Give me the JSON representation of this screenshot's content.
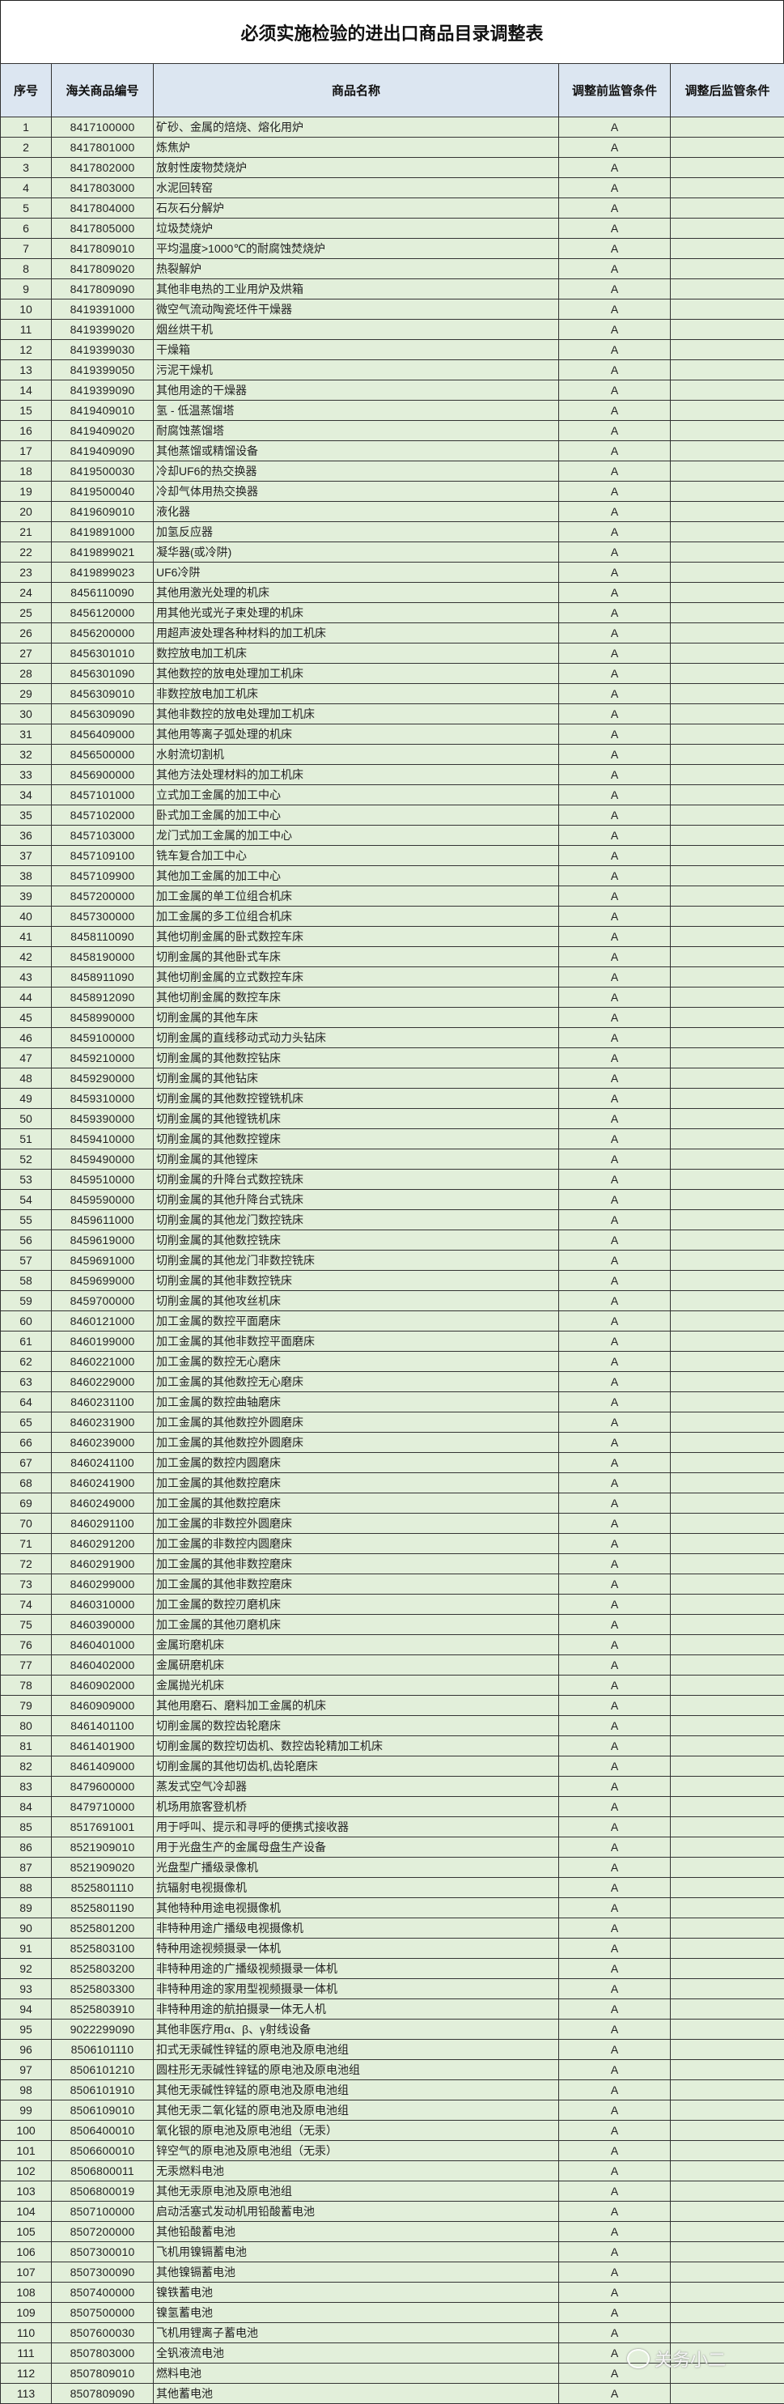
{
  "title": "必须实施检验的进出口商品目录调整表",
  "columns": [
    "序号",
    "海关商品编号",
    "商品名称",
    "调整前监管条件",
    "调整后监管条件"
  ],
  "colors": {
    "header_bg": "#dce6f1",
    "row_bg": "#e2efda"
  },
  "watermark": "关务小二",
  "rows": [
    [
      "1",
      "8417100000",
      "矿砂、金属的焙烧、熔化用炉",
      "A",
      ""
    ],
    [
      "2",
      "8417801000",
      "炼焦炉",
      "A",
      ""
    ],
    [
      "3",
      "8417802000",
      "放射性废物焚烧炉",
      "A",
      ""
    ],
    [
      "4",
      "8417803000",
      "水泥回转窑",
      "A",
      ""
    ],
    [
      "5",
      "8417804000",
      "石灰石分解炉",
      "A",
      ""
    ],
    [
      "6",
      "8417805000",
      "垃圾焚烧炉",
      "A",
      ""
    ],
    [
      "7",
      "8417809010",
      "平均温度>1000℃的耐腐蚀焚烧炉",
      "A",
      ""
    ],
    [
      "8",
      "8417809020",
      "热裂解炉",
      "A",
      ""
    ],
    [
      "9",
      "8417809090",
      "其他非电热的工业用炉及烘箱",
      "A",
      ""
    ],
    [
      "10",
      "8419391000",
      "微空气流动陶瓷坯件干燥器",
      "A",
      ""
    ],
    [
      "11",
      "8419399020",
      "烟丝烘干机",
      "A",
      ""
    ],
    [
      "12",
      "8419399030",
      "干燥箱",
      "A",
      ""
    ],
    [
      "13",
      "8419399050",
      "污泥干燥机",
      "A",
      ""
    ],
    [
      "14",
      "8419399090",
      "其他用途的干燥器",
      "A",
      ""
    ],
    [
      "15",
      "8419409010",
      "氢 - 低温蒸馏塔",
      "A",
      ""
    ],
    [
      "16",
      "8419409020",
      "耐腐蚀蒸馏塔",
      "A",
      ""
    ],
    [
      "17",
      "8419409090",
      "其他蒸馏或精馏设备",
      "A",
      ""
    ],
    [
      "18",
      "8419500030",
      "冷却UF6的热交换器",
      "A",
      ""
    ],
    [
      "19",
      "8419500040",
      "冷却气体用热交换器",
      "A",
      ""
    ],
    [
      "20",
      "8419609010",
      "液化器",
      "A",
      ""
    ],
    [
      "21",
      "8419891000",
      "加氢反应器",
      "A",
      ""
    ],
    [
      "22",
      "8419899021",
      "凝华器(或冷阱)",
      "A",
      ""
    ],
    [
      "23",
      "8419899023",
      "UF6冷阱",
      "A",
      ""
    ],
    [
      "24",
      "8456110090",
      "其他用激光处理的机床",
      "A",
      ""
    ],
    [
      "25",
      "8456120000",
      "用其他光或光子束处理的机床",
      "A",
      ""
    ],
    [
      "26",
      "8456200000",
      "用超声波处理各种材料的加工机床",
      "A",
      ""
    ],
    [
      "27",
      "8456301010",
      "数控放电加工机床",
      "A",
      ""
    ],
    [
      "28",
      "8456301090",
      "其他数控的放电处理加工机床",
      "A",
      ""
    ],
    [
      "29",
      "8456309010",
      "非数控放电加工机床",
      "A",
      ""
    ],
    [
      "30",
      "8456309090",
      "其他非数控的放电处理加工机床",
      "A",
      ""
    ],
    [
      "31",
      "8456409000",
      "其他用等离子弧处理的机床",
      "A",
      ""
    ],
    [
      "32",
      "8456500000",
      "水射流切割机",
      "A",
      ""
    ],
    [
      "33",
      "8456900000",
      "其他方法处理材料的加工机床",
      "A",
      ""
    ],
    [
      "34",
      "8457101000",
      "立式加工金属的加工中心",
      "A",
      ""
    ],
    [
      "35",
      "8457102000",
      "卧式加工金属的加工中心",
      "A",
      ""
    ],
    [
      "36",
      "8457103000",
      "龙门式加工金属的加工中心",
      "A",
      ""
    ],
    [
      "37",
      "8457109100",
      "铣车复合加工中心",
      "A",
      ""
    ],
    [
      "38",
      "8457109900",
      "其他加工金属的加工中心",
      "A",
      ""
    ],
    [
      "39",
      "8457200000",
      "加工金属的单工位组合机床",
      "A",
      ""
    ],
    [
      "40",
      "8457300000",
      "加工金属的多工位组合机床",
      "A",
      ""
    ],
    [
      "41",
      "8458110090",
      "其他切削金属的卧式数控车床",
      "A",
      ""
    ],
    [
      "42",
      "8458190000",
      "切削金属的其他卧式车床",
      "A",
      ""
    ],
    [
      "43",
      "8458911090",
      "其他切削金属的立式数控车床",
      "A",
      ""
    ],
    [
      "44",
      "8458912090",
      "其他切削金属的数控车床",
      "A",
      ""
    ],
    [
      "45",
      "8458990000",
      "切削金属的其他车床",
      "A",
      ""
    ],
    [
      "46",
      "8459100000",
      "切削金属的直线移动式动力头钻床",
      "A",
      ""
    ],
    [
      "47",
      "8459210000",
      "切削金属的其他数控钻床",
      "A",
      ""
    ],
    [
      "48",
      "8459290000",
      "切削金属的其他钻床",
      "A",
      ""
    ],
    [
      "49",
      "8459310000",
      "切削金属的其他数控镗铣机床",
      "A",
      ""
    ],
    [
      "50",
      "8459390000",
      "切削金属的其他镗铣机床",
      "A",
      ""
    ],
    [
      "51",
      "8459410000",
      "切削金属的其他数控镗床",
      "A",
      ""
    ],
    [
      "52",
      "8459490000",
      "切削金属的其他镗床",
      "A",
      ""
    ],
    [
      "53",
      "8459510000",
      "切削金属的升降台式数控铣床",
      "A",
      ""
    ],
    [
      "54",
      "8459590000",
      "切削金属的其他升降台式铣床",
      "A",
      ""
    ],
    [
      "55",
      "8459611000",
      "切削金属的其他龙门数控铣床",
      "A",
      ""
    ],
    [
      "56",
      "8459619000",
      "切削金属的其他数控铣床",
      "A",
      ""
    ],
    [
      "57",
      "8459691000",
      "切削金属的其他龙门非数控铣床",
      "A",
      ""
    ],
    [
      "58",
      "8459699000",
      "切削金属的其他非数控铣床",
      "A",
      ""
    ],
    [
      "59",
      "8459700000",
      "切削金属的其他攻丝机床",
      "A",
      ""
    ],
    [
      "60",
      "8460121000",
      "加工金属的数控平面磨床",
      "A",
      ""
    ],
    [
      "61",
      "8460199000",
      "加工金属的其他非数控平面磨床",
      "A",
      ""
    ],
    [
      "62",
      "8460221000",
      "加工金属的数控无心磨床",
      "A",
      ""
    ],
    [
      "63",
      "8460229000",
      "加工金属的其他数控无心磨床",
      "A",
      ""
    ],
    [
      "64",
      "8460231100",
      "加工金属的数控曲轴磨床",
      "A",
      ""
    ],
    [
      "65",
      "8460231900",
      "加工金属的其他数控外圆磨床",
      "A",
      ""
    ],
    [
      "66",
      "8460239000",
      "加工金属的其他数控外圆磨床",
      "A",
      ""
    ],
    [
      "67",
      "8460241100",
      "加工金属的数控内圆磨床",
      "A",
      ""
    ],
    [
      "68",
      "8460241900",
      "加工金属的其他数控磨床",
      "A",
      ""
    ],
    [
      "69",
      "8460249000",
      "加工金属的其他数控磨床",
      "A",
      ""
    ],
    [
      "70",
      "8460291100",
      "加工金属的非数控外圆磨床",
      "A",
      ""
    ],
    [
      "71",
      "8460291200",
      "加工金属的非数控内圆磨床",
      "A",
      ""
    ],
    [
      "72",
      "8460291900",
      "加工金属的其他非数控磨床",
      "A",
      ""
    ],
    [
      "73",
      "8460299000",
      "加工金属的其他非数控磨床",
      "A",
      ""
    ],
    [
      "74",
      "8460310000",
      "加工金属的数控刃磨机床",
      "A",
      ""
    ],
    [
      "75",
      "8460390000",
      "加工金属的其他刃磨机床",
      "A",
      ""
    ],
    [
      "76",
      "8460401000",
      "金属珩磨机床",
      "A",
      ""
    ],
    [
      "77",
      "8460402000",
      "金属研磨机床",
      "A",
      ""
    ],
    [
      "78",
      "8460902000",
      "金属抛光机床",
      "A",
      ""
    ],
    [
      "79",
      "8460909000",
      "其他用磨石、磨料加工金属的机床",
      "A",
      ""
    ],
    [
      "80",
      "8461401100",
      "切削金属的数控齿轮磨床",
      "A",
      ""
    ],
    [
      "81",
      "8461401900",
      "切削金属的数控切齿机、数控齿轮精加工机床",
      "A",
      ""
    ],
    [
      "82",
      "8461409000",
      "切削金属的其他切齿机,齿轮磨床",
      "A",
      ""
    ],
    [
      "83",
      "8479600000",
      "蒸发式空气冷却器",
      "A",
      ""
    ],
    [
      "84",
      "8479710000",
      "机场用旅客登机桥",
      "A",
      ""
    ],
    [
      "85",
      "8517691001",
      "用于呼叫、提示和寻呼的便携式接收器",
      "A",
      ""
    ],
    [
      "86",
      "8521909010",
      "用于光盘生产的金属母盘生产设备",
      "A",
      ""
    ],
    [
      "87",
      "8521909020",
      "光盘型广播级录像机",
      "A",
      ""
    ],
    [
      "88",
      "8525801110",
      "抗辐射电视摄像机",
      "A",
      ""
    ],
    [
      "89",
      "8525801190",
      "其他特种用途电视摄像机",
      "A",
      ""
    ],
    [
      "90",
      "8525801200",
      "非特种用途广播级电视摄像机",
      "A",
      ""
    ],
    [
      "91",
      "8525803100",
      "特种用途视频摄录一体机",
      "A",
      ""
    ],
    [
      "92",
      "8525803200",
      "非特种用途的广播级视频摄录一体机",
      "A",
      ""
    ],
    [
      "93",
      "8525803300",
      "非特种用途的家用型视频摄录一体机",
      "A",
      ""
    ],
    [
      "94",
      "8525803910",
      "非特种用途的航拍摄录一体无人机",
      "A",
      ""
    ],
    [
      "95",
      "9022299090",
      "其他非医疗用α、β、γ射线设备",
      "A",
      ""
    ],
    [
      "96",
      "8506101110",
      "扣式无汞碱性锌锰的原电池及原电池组",
      "A",
      ""
    ],
    [
      "97",
      "8506101210",
      "圆柱形无汞碱性锌锰的原电池及原电池组",
      "A",
      ""
    ],
    [
      "98",
      "8506101910",
      "其他无汞碱性锌锰的原电池及原电池组",
      "A",
      ""
    ],
    [
      "99",
      "8506109010",
      "其他无汞二氧化锰的原电池及原电池组",
      "A",
      ""
    ],
    [
      "100",
      "8506400010",
      "氧化银的原电池及原电池组（无汞）",
      "A",
      ""
    ],
    [
      "101",
      "8506600010",
      "锌空气的原电池及原电池组（无汞）",
      "A",
      ""
    ],
    [
      "102",
      "8506800011",
      "无汞燃料电池",
      "A",
      ""
    ],
    [
      "103",
      "8506800019",
      "其他无汞原电池及原电池组",
      "A",
      ""
    ],
    [
      "104",
      "8507100000",
      "启动活塞式发动机用铅酸蓄电池",
      "A",
      ""
    ],
    [
      "105",
      "8507200000",
      "其他铅酸蓄电池",
      "A",
      ""
    ],
    [
      "106",
      "8507300010",
      "飞机用镍镉蓄电池",
      "A",
      ""
    ],
    [
      "107",
      "8507300090",
      "其他镍镉蓄电池",
      "A",
      ""
    ],
    [
      "108",
      "8507400000",
      "镍铁蓄电池",
      "A",
      ""
    ],
    [
      "109",
      "8507500000",
      "镍氢蓄电池",
      "A",
      ""
    ],
    [
      "110",
      "8507600030",
      "飞机用锂离子蓄电池",
      "A",
      ""
    ],
    [
      "111",
      "8507803000",
      "全钒液流电池",
      "A",
      ""
    ],
    [
      "112",
      "8507809010",
      "燃料电池",
      "A",
      ""
    ],
    [
      "113",
      "8507809090",
      "其他蓄电池",
      "A",
      ""
    ]
  ]
}
